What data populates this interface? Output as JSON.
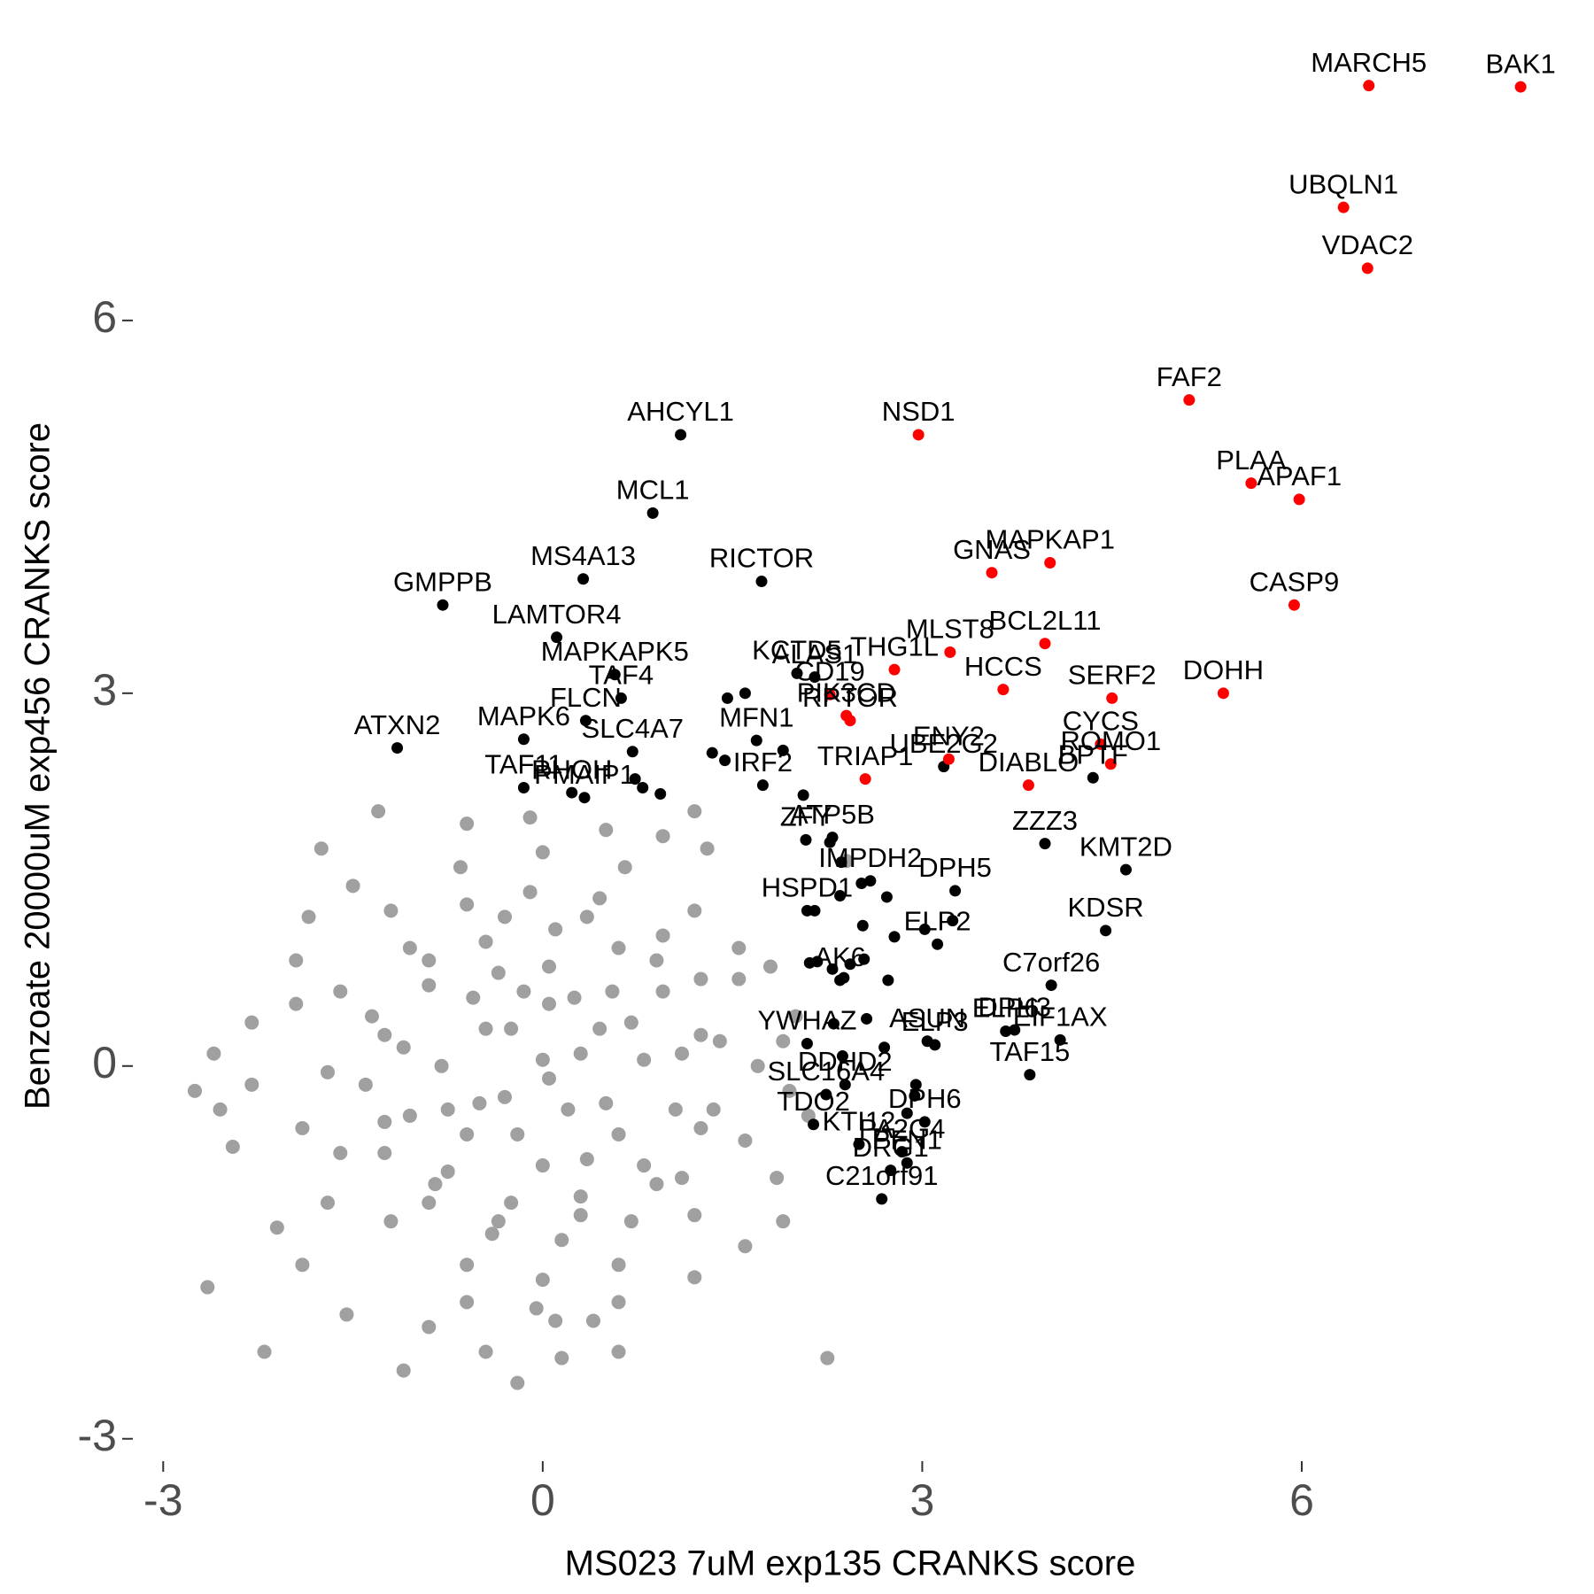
{
  "chart_data": {
    "type": "scatter",
    "xlabel": "MS023 7uM exp135 CRANKS score",
    "ylabel": "Benzoate 20000uM exp456 CRANKS score",
    "xlim": [
      -3.24,
      8.1
    ],
    "ylim": [
      -3.18,
      8.08
    ],
    "xticks": [
      -3,
      0,
      3,
      6
    ],
    "yticks": [
      -3,
      0,
      3,
      6
    ],
    "series": [
      {
        "color": "#a0a0a0",
        "x": [
          -2.65,
          -2.2,
          -2.55,
          -2.45,
          -2.3,
          -2.3,
          -1.95,
          -1.75,
          -2.1,
          -1.9,
          -1.55,
          -1.1,
          -0.9,
          -0.45,
          0.15,
          0.6,
          1.2,
          1.9,
          1.85,
          2.25,
          1.55,
          1.8,
          1.3,
          1.2,
          -1.5,
          -1.3,
          -0.6,
          -0.1,
          0.5,
          0.95,
          2.4,
          -2.6,
          -2.75,
          1.6,
          -0.2,
          0.4,
          -1.7,
          2.0,
          2.1,
          1.95,
          0.3,
          -0.25,
          -0.3,
          0.2,
          0,
          0.05,
          0.8,
          0.55,
          0.05,
          -0.55,
          -0.8,
          -0.6,
          0,
          0.6,
          0.7,
          -0.35,
          -0.75,
          0.35,
          1.1,
          0.95,
          0.6,
          0.1,
          -0.45,
          -0.9,
          -1.1,
          -1.05,
          -0.75,
          -0.25,
          0.3,
          0.8,
          1.05,
          1.4,
          1.25,
          0.95,
          0.45,
          -0.1,
          -0.6,
          -1.05,
          -1.35,
          -1.4,
          -1.25,
          -0.9,
          -0.4,
          0.15,
          0.7,
          1.1,
          1.35,
          1.7,
          1.55,
          1.2,
          0.65,
          0,
          -0.65,
          -1.2,
          -1.6,
          -1.7,
          -1.6,
          -1.2,
          -0.6,
          0,
          0.6,
          1.2,
          1.6,
          0.45,
          -0.45,
          -0.5,
          0.5,
          0.25,
          -0.2,
          0.05,
          -0.15,
          1.25,
          0.9,
          0.35,
          -0.3,
          -0.9,
          -1.25,
          -1.25,
          -0.85,
          -0.35,
          0.3,
          0.9,
          1.25,
          -1.95,
          -1.9,
          -1.85,
          1.9,
          -0.05,
          0.1,
          -0.6,
          0.6
        ],
        "values": [
          -1.78,
          -2.3,
          -0.35,
          -0.65,
          0.35,
          -0.15,
          0.85,
          1.75,
          -1.3,
          -1.6,
          -2.0,
          -2.45,
          -2.1,
          -2.3,
          -2.35,
          -2.3,
          -1.7,
          -1.25,
          -0.9,
          -2.35,
          0.95,
          0.8,
          1.75,
          2.05,
          1.45,
          2.05,
          1.95,
          2.0,
          1.9,
          1.85,
          1.65,
          0.1,
          -0.2,
          -1.45,
          -2.55,
          -2.05,
          -1.1,
          0.4,
          -0.4,
          -0.2,
          0.1,
          0.3,
          -0.25,
          -0.35,
          0.05,
          -0.1,
          0.05,
          0.6,
          0.8,
          0.55,
          0,
          -0.55,
          -0.8,
          -0.55,
          0.35,
          0.75,
          -0.35,
          -0.75,
          0.1,
          0.6,
          0.95,
          1.1,
          1.0,
          0.65,
          0.15,
          -0.4,
          -0.85,
          -1.1,
          -1.05,
          -0.8,
          -0.35,
          0.2,
          0.7,
          1.05,
          1.35,
          1.4,
          1.3,
          0.95,
          0.4,
          -0.15,
          -0.7,
          -1.1,
          -1.35,
          -1.4,
          -1.25,
          -0.9,
          -0.35,
          0.0,
          0.7,
          1.25,
          1.6,
          1.72,
          1.6,
          1.25,
          0.6,
          -0.05,
          -0.7,
          -1.25,
          -1.6,
          -1.72,
          -1.6,
          -1.2,
          -0.6,
          0.3,
          0.3,
          -0.3,
          -0.3,
          0.55,
          -0.55,
          0.5,
          0.6,
          0.25,
          0.85,
          1.2,
          1.2,
          0.85,
          0.25,
          -0.45,
          -0.95,
          -1.25,
          -1.2,
          -0.95,
          -0.5,
          0.5,
          -0.5,
          1.2,
          0.2,
          -1.95,
          -2.05,
          -1.9,
          -1.9
        ]
      },
      {
        "color": "#000000",
        "x": [
          1.09,
          0.87,
          0.32,
          -0.79,
          1.73,
          0.11,
          2.01,
          2.15,
          0.57,
          0.62,
          0.34,
          -0.15,
          -1.15,
          0.71,
          0.23,
          -0.15,
          0.33,
          1.69,
          1.74,
          3.17,
          4.35,
          2.08,
          2.29,
          3.97,
          4.61,
          2.59,
          3.26,
          2.09,
          4.45,
          3.12,
          4.02,
          2.35,
          3.73,
          3.04,
          4.09,
          2.09,
          3.66,
          3.85,
          2.39,
          2.24,
          3.1,
          2.14,
          3.02,
          2.5,
          2.88,
          2.84,
          2.75,
          2.68,
          1.46,
          1.6,
          1.34,
          1.44,
          1.9,
          2.06,
          0.73,
          0.79,
          0.93,
          2.27,
          2.36,
          2.52,
          2.72,
          2.35,
          2.15,
          2.53,
          2.78,
          3.02,
          3.24,
          2.11,
          2.17,
          2.29,
          2.43,
          2.54,
          2.73,
          2.38,
          2.3,
          2.56,
          2.7,
          2.37,
          2.95,
          2.94,
          2.88
        ],
        "values": [
          5.08,
          4.45,
          3.92,
          3.71,
          3.9,
          3.45,
          3.16,
          3.13,
          3.15,
          2.96,
          2.78,
          2.63,
          2.56,
          2.53,
          2.2,
          2.24,
          2.16,
          2.62,
          2.26,
          2.41,
          2.32,
          1.82,
          1.84,
          1.79,
          1.58,
          1.49,
          1.41,
          1.25,
          1.09,
          0.98,
          0.65,
          0.69,
          0.29,
          0.2,
          0.21,
          0.18,
          0.28,
          -0.07,
          -0.15,
          -0.23,
          0.17,
          -0.47,
          -0.45,
          -0.63,
          -0.78,
          -0.69,
          -0.84,
          -1.07,
          2.96,
          3.0,
          2.52,
          2.46,
          2.54,
          2.18,
          2.31,
          2.24,
          2.19,
          1.8,
          1.64,
          1.47,
          1.36,
          1.37,
          1.25,
          1.13,
          1.04,
          1.1,
          1.17,
          0.83,
          0.84,
          0.78,
          0.82,
          0.86,
          0.69,
          0.71,
          0.34,
          0.38,
          0.15,
          0.08,
          -0.15,
          -0.24,
          -0.38
        ],
        "labels": [
          "AHCYL1",
          "MCL1",
          "MS4A13",
          "GMPPB",
          "RICTOR",
          "LAMTOR4",
          "KCTD5",
          "ALAS1",
          "MAPKAPK5",
          "TAF4",
          "FLCN",
          "MAPK6",
          "ATXN2",
          "SLC4A7",
          "RHOH",
          "TAF11",
          "PMAIP1",
          "MFN1",
          "IRF2",
          "UBE2G2",
          "BPTF",
          "ZFY",
          "ATP5B",
          "ZZZ3",
          "KMT2D",
          "IMPDH2",
          "DPH5",
          "HSPD1",
          "KDSR",
          "ELP2",
          "C7orf26",
          "AK6",
          "DPH3",
          "ASUN",
          "EIF1AX",
          "YWHAZ",
          "ELP6",
          "TAF15",
          "DDHD2",
          "SLC16A4",
          "ELP3",
          "TDO2",
          "DPH6",
          "KTI12",
          "PFN1",
          "PA2G4",
          "DRG1",
          "C21orf91",
          null,
          null,
          null,
          null,
          null,
          null,
          null,
          null,
          null,
          null,
          null,
          null,
          null,
          null,
          null,
          null,
          null,
          null,
          null,
          null,
          null,
          null,
          null,
          null,
          null,
          null,
          null,
          null,
          null,
          null,
          null,
          null,
          null
        ]
      },
      {
        "color": "#ff0000",
        "x": [
          6.53,
          7.73,
          6.33,
          6.52,
          5.11,
          2.97,
          5.6,
          5.98,
          3.55,
          4.01,
          5.94,
          3.97,
          3.22,
          2.78,
          3.64,
          5.38,
          4.5,
          2.27,
          2.4,
          2.43,
          4.41,
          3.21,
          4.49,
          3.84,
          2.55
        ],
        "values": [
          7.89,
          7.88,
          6.91,
          6.42,
          5.36,
          5.08,
          4.69,
          4.56,
          3.97,
          4.05,
          3.71,
          3.4,
          3.33,
          3.19,
          3.03,
          3.0,
          2.96,
          2.99,
          2.82,
          2.78,
          2.59,
          2.47,
          2.43,
          2.26,
          2.31
        ],
        "labels": [
          "MARCH5",
          "BAK1",
          "UBQLN1",
          "VDAC2",
          "FAF2",
          "NSD1",
          "PLAA",
          "APAF1",
          "GNAS",
          "MAPKAP1",
          "CASP9",
          "BCL2L11",
          "MLST8",
          "THG1L",
          "HCCS",
          "DOHH",
          "SERF2",
          "CD19",
          "PIK3CD",
          "RPTOR",
          "CYCS",
          "ENY2",
          "ROMO1",
          "DIABLO",
          "TRIAP1"
        ]
      }
    ]
  }
}
